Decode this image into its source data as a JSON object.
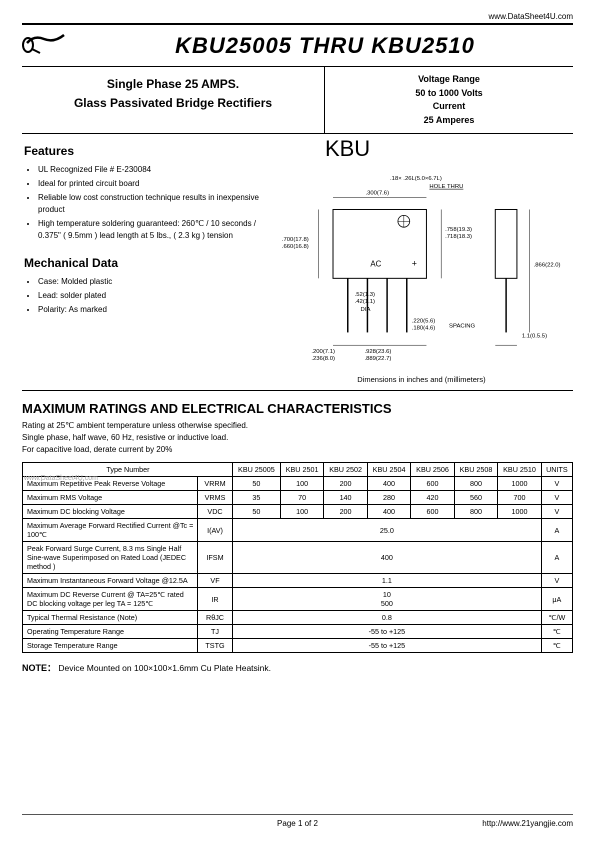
{
  "header": {
    "url_top": "www.DataSheet4U.com",
    "title": "KBU25005 THRU KBU2510",
    "spec_left_line1": "Single Phase 25 AMPS.",
    "spec_left_line2": "Glass Passivated Bridge Rectifiers",
    "spec_right_l1": "Voltage Range",
    "spec_right_l2": "50 to 1000 Volts",
    "spec_right_l3": "Current",
    "spec_right_l4": "25 Amperes"
  },
  "features": {
    "heading": "Features",
    "items": [
      "UL Recognized File # E-230084",
      "Ideal for printed circuit board",
      "Reliable low cost construction technique results in inexpensive product",
      "High temperature soldering guaranteed: 260℃ / 10 seconds / 0.375\" ( 9.5mm ) lead length at 5 lbs., ( 2.3 kg ) tension"
    ]
  },
  "mech": {
    "heading": "Mechanical Data",
    "items": [
      "Case: Molded plastic",
      "Lead: solder plated",
      "Polarity: As marked"
    ]
  },
  "diagram": {
    "label": "KBU",
    "caption": "Dimensions in inches and (millimeters)",
    "annotations": {
      "top1": ".18× .26L(5.0×6.7L)",
      "top2": "HOLE THRU",
      "top_dim": ".300(7.6)",
      "left_h": ".700(17.8)",
      "left_h2": ".660(16.8)",
      "right_h1": ".758(19.3)",
      "right_h2": ".718(18.3)",
      "ac": "AC",
      "plus": "+",
      "right_total1": ".866(22.0)",
      "dia1": ".52(1.3)",
      "dia2": ".42(1.1)",
      "dia_lbl": "DIA",
      "spacing1": ".220(5.6)",
      "spacing2": ".180(4.6)",
      "spacing_lbl": "SPACING",
      "lead": "1.1(0.5.5)",
      "bot_w1": ".200(7.1)",
      "bot_w2": ".236(8.0)",
      "bot_t1": ".928(23.6)",
      "bot_t2": ".889(22.7)"
    }
  },
  "ratings": {
    "title": "MAXIMUM RATINGS AND ELECTRICAL CHARACTERISTICS",
    "notes": [
      "Rating at 25℃  ambient temperature unless otherwise specified.",
      "Single phase, half wave, 60 Hz, resistive or inductive load.",
      "For capacitive load, derate current by 20%"
    ],
    "type_label": "Type Number",
    "units_label": "UNITS",
    "columns": [
      "KBU 25005",
      "KBU 2501",
      "KBU 2502",
      "KBU 2504",
      "KBU 2506",
      "KBU 2508",
      "KBU 2510"
    ],
    "rows": [
      {
        "param": "Maximum Repetitive Peak Reverse Voltage",
        "sym": "VRRM",
        "vals": [
          "50",
          "100",
          "200",
          "400",
          "600",
          "800",
          "1000"
        ],
        "unit": "V"
      },
      {
        "param": "Maximum RMS Voltage",
        "sym": "VRMS",
        "vals": [
          "35",
          "70",
          "140",
          "280",
          "420",
          "560",
          "700"
        ],
        "unit": "V"
      },
      {
        "param": "Maximum DC blocking Voltage",
        "sym": "VDC",
        "vals": [
          "50",
          "100",
          "200",
          "400",
          "600",
          "800",
          "1000"
        ],
        "unit": "V"
      },
      {
        "param": "Maximum Average Forward Rectified Current @Tc = 100℃",
        "sym": "I(AV)",
        "span": "25.0",
        "unit": "A"
      },
      {
        "param": "Peak Forward Surge Current, 8.3 ms Single Half Sine-wave Superimposed on Rated Load (JEDEC method )",
        "sym": "IFSM",
        "span": "400",
        "unit": "A"
      },
      {
        "param": "Maximum Instantaneous Forward Voltage @12.5A",
        "sym": "VF",
        "span": "1.1",
        "unit": "V"
      },
      {
        "param": "Maximum DC Reverse Current @ TA=25℃ rated DC blocking voltage per leg TA = 125℃",
        "sym": "IR",
        "span2": [
          "10",
          "500"
        ],
        "unit": "μA"
      },
      {
        "param": "Typical Thermal Resistance (Note)",
        "sym": "RθJC",
        "span": "0.8",
        "unit": "℃/W"
      },
      {
        "param": "Operating Temperature Range",
        "sym": "TJ",
        "span": "-55 to +125",
        "unit": "℃"
      },
      {
        "param": "Storage Temperature Range",
        "sym": "TSTG",
        "span": "-55 to +125",
        "unit": "℃"
      }
    ]
  },
  "note": {
    "label": "NOTE：",
    "text": "Device Mounted on 100×100×1.6mm Cu Plate Heatsink."
  },
  "footer": {
    "page": "Page 1 of 2",
    "url": "http://www.21yangjie.com"
  },
  "watermark": "www.DataSheet4U.com"
}
